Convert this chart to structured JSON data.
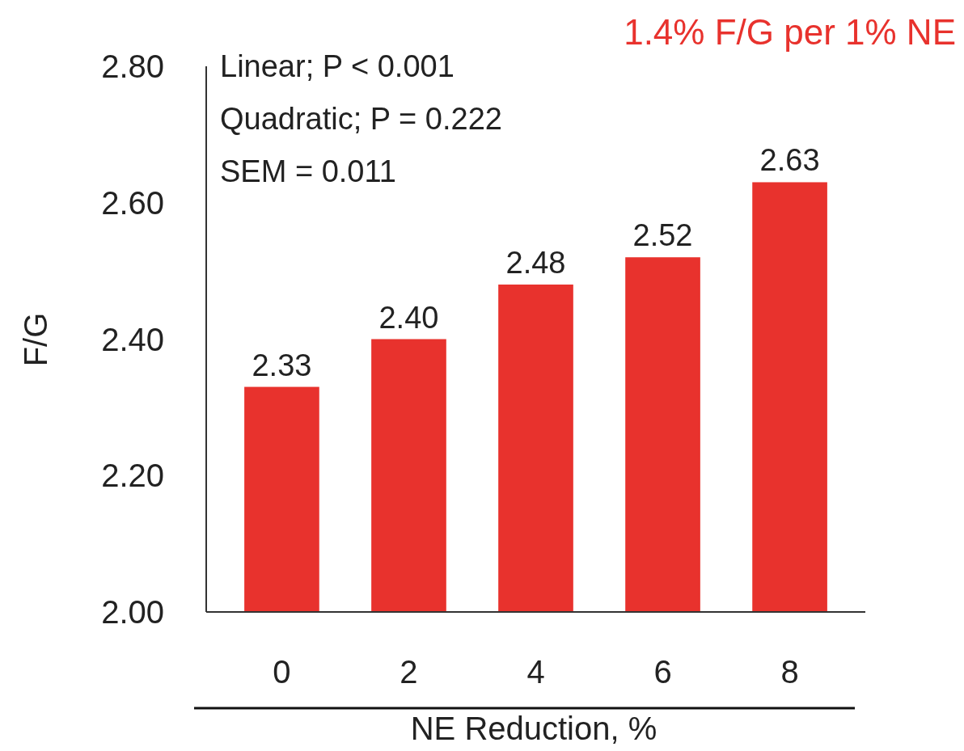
{
  "chart_data": {
    "type": "bar",
    "categories": [
      "0",
      "2",
      "4",
      "6",
      "8"
    ],
    "values": [
      2.33,
      2.4,
      2.48,
      2.52,
      2.63
    ],
    "color": "#e8322d",
    "ylim": [
      2.0,
      2.8
    ],
    "yticks": [
      {
        "value": 2.0,
        "label": "2.00"
      },
      {
        "value": 2.2,
        "label": "2.20"
      },
      {
        "value": 2.4,
        "label": "2.40"
      },
      {
        "value": 2.6,
        "label": "2.60"
      },
      {
        "value": 2.8,
        "label": "2.80"
      }
    ],
    "xlabel": "NE Reduction, %",
    "ylabel": "F/G",
    "value_labels": [
      "2.33",
      "2.40",
      "2.48",
      "2.52",
      "2.63"
    ],
    "grid": false,
    "annotations": [
      "Linear; P < 0.001",
      "Quadratic; P = 0.222",
      "SEM = 0.011",
      "1.4% F/G per 1% NE"
    ]
  }
}
